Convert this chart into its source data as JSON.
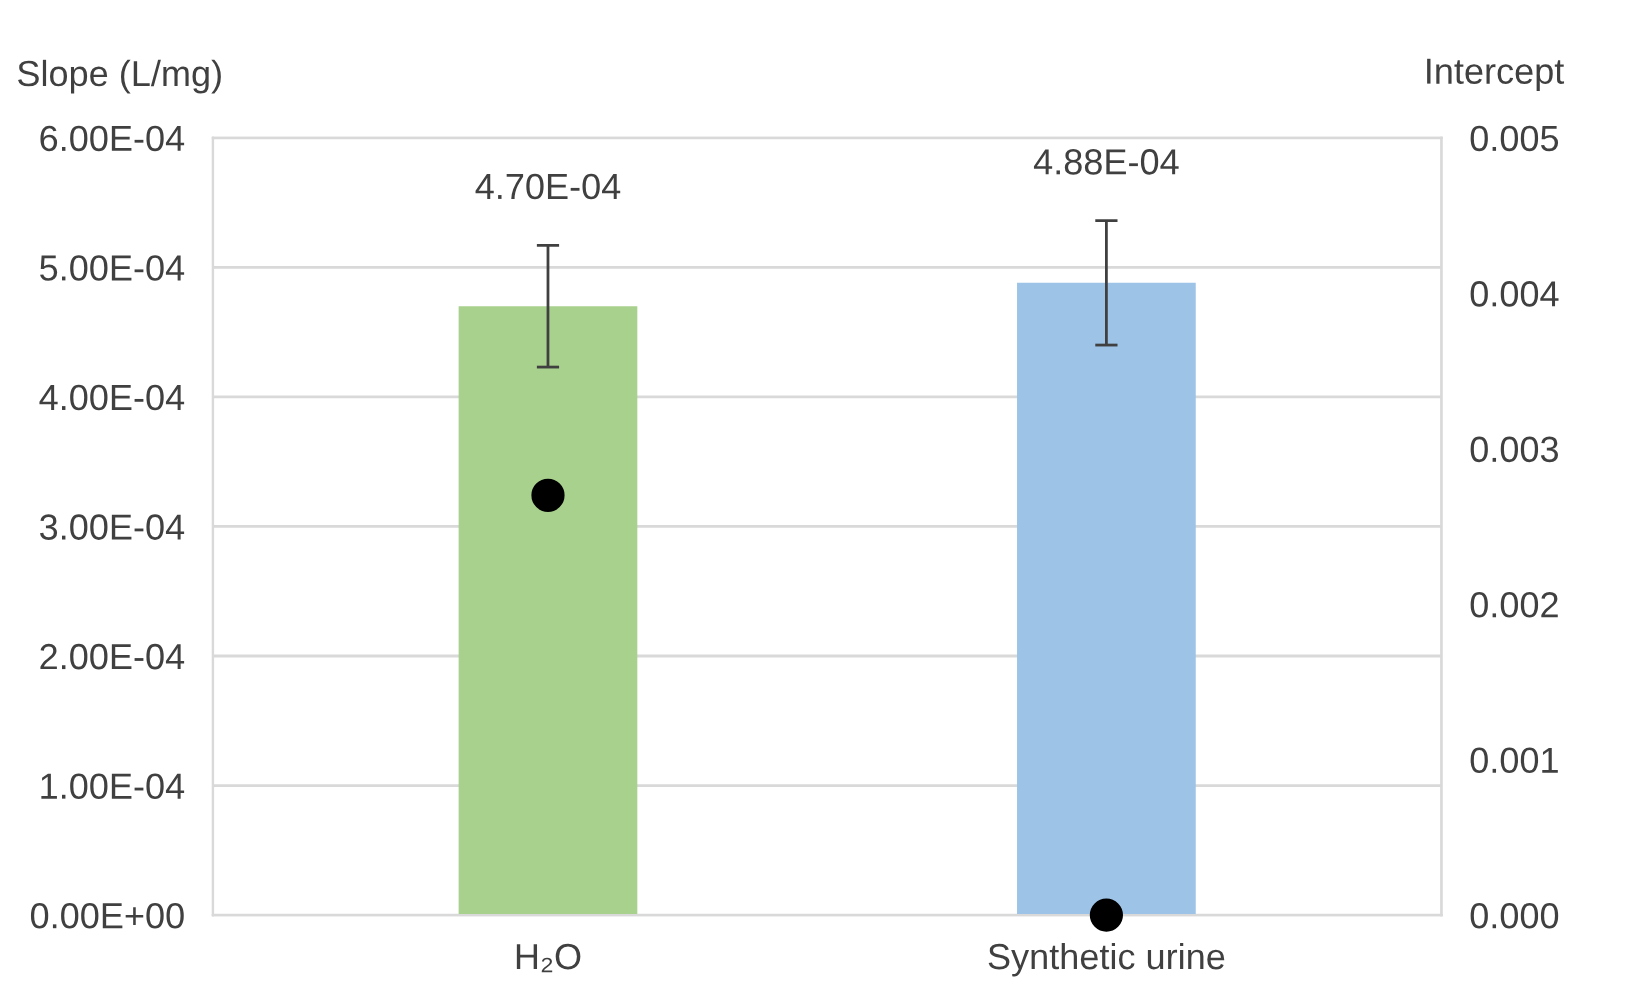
{
  "chart_data": {
    "type": "bar",
    "categories": [
      "H₂O",
      "Synthetic urine"
    ],
    "ylabel": "Slope (L/mg)",
    "y2label": "Intercept",
    "series": [
      {
        "colors": [
          "#a9d18e",
          "#9dc3e6"
        ],
        "values": [
          0.00047,
          0.000488
        ],
        "errors": [
          4.7e-05,
          4.8e-05
        ],
        "value_labels": [
          "4.70E-04",
          "4.88E-04"
        ]
      },
      {
        "type": "scatter",
        "axis": "y2",
        "color": "#000000",
        "values": [
          0.0027,
          0.0
        ],
        "marker": "circle"
      }
    ],
    "ylim": [
      0,
      0.0006
    ],
    "yticks": [
      {
        "value": 0,
        "label": "0.00E+00"
      },
      {
        "value": 0.0001,
        "label": "1.00E-04"
      },
      {
        "value": 0.0002,
        "label": "2.00E-04"
      },
      {
        "value": 0.0003,
        "label": "3.00E-04"
      },
      {
        "value": 0.0004,
        "label": "4.00E-04"
      },
      {
        "value": 0.0005,
        "label": "5.00E-04"
      },
      {
        "value": 0.0006,
        "label": "6.00E-04"
      }
    ],
    "y2lim": [
      0,
      0.005
    ],
    "y2ticks": [
      {
        "value": 0,
        "label": "0.000"
      },
      0.001,
      0.002,
      0.003,
      0.004,
      0.005
    ],
    "grid": "y",
    "legend": false
  }
}
